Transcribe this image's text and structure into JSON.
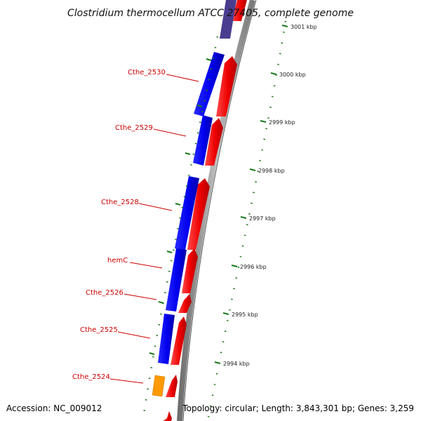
{
  "title": "Clostridium thermocellum ATCC 27405, complete genome",
  "accession": "Accession: NC_009012",
  "topology": "Topology: circular; Length: 3,843,301 bp; Genes: 3,259",
  "colors": {
    "forward_cds": "#ee0000",
    "reverse_cds": "#0000ee",
    "reverse_cds_faded": "#4a3d8f",
    "other_feature": "#ff9900",
    "backbone": "#8c8c8c",
    "ruler": "#1a7a1a",
    "label": "#cc0000"
  },
  "gene_labels": [
    "Cthe_2530",
    "Cthe_2529",
    "Cthe_2528",
    "hemC",
    "Cthe_2526",
    "Cthe_2525",
    "Cthe_2524"
  ],
  "ruler_labels": [
    "3001 kbp",
    "3000 kbp",
    "2999 kbp",
    "2998 kbp",
    "2997 kbp",
    "2996 kbp",
    "2995 kbp",
    "2994 kbp"
  ]
}
